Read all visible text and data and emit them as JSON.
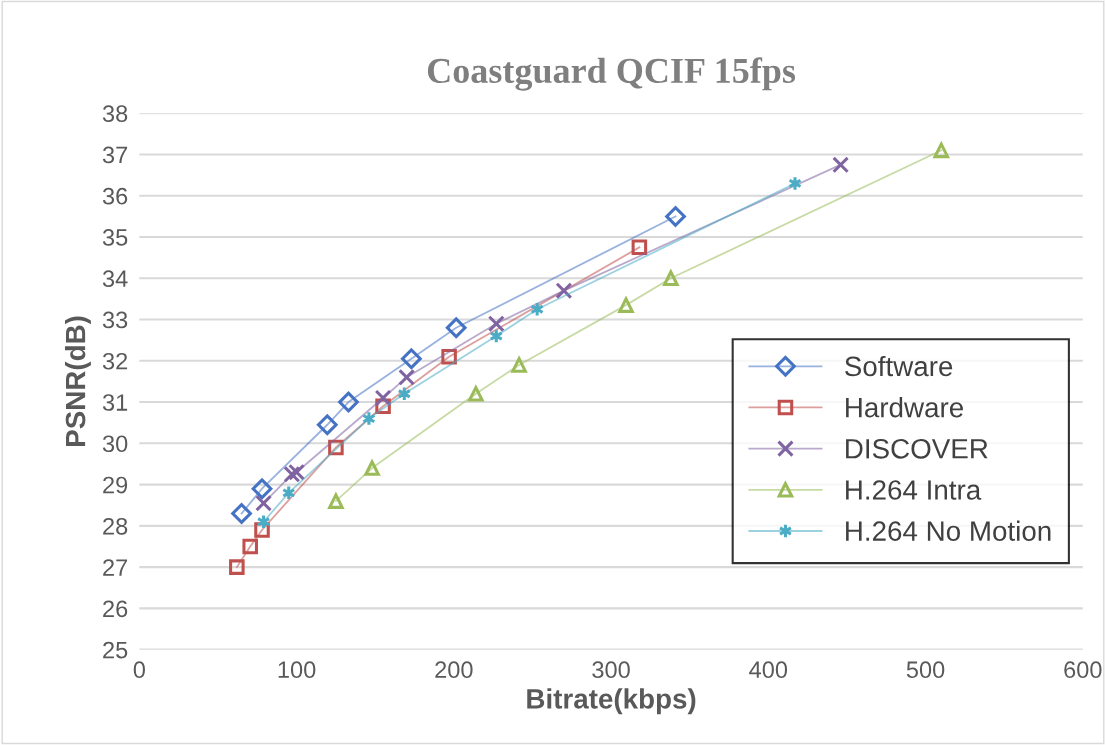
{
  "chart_data": {
    "type": "line",
    "title": "Coastguard QCIF 15fps",
    "xlabel": "Bitrate(kbps)",
    "ylabel": "PSNR(dB)",
    "xlim": [
      0,
      600
    ],
    "xticks": [
      0,
      100,
      200,
      300,
      400,
      500,
      600
    ],
    "ylim": [
      25,
      38
    ],
    "yticks": [
      25,
      26,
      27,
      28,
      29,
      30,
      31,
      32,
      33,
      34,
      35,
      36,
      37,
      38
    ],
    "grid": "y",
    "legend": "right",
    "series": [
      {
        "name": "Software",
        "color": "#4472c4",
        "marker": "diamond",
        "x": [
          65,
          78,
          119.5,
          133,
          173,
          201.5,
          341
        ],
        "values": [
          28.3,
          28.9,
          30.45,
          31.0,
          32.05,
          32.8,
          35.5
        ]
      },
      {
        "name": "Hardware",
        "color": "#c0504d",
        "marker": "square",
        "x": [
          62,
          70.5,
          78,
          125,
          155,
          197,
          318
        ],
        "values": [
          27.0,
          27.5,
          27.9,
          29.9,
          30.9,
          32.1,
          34.75
        ]
      },
      {
        "name": "DISCOVER",
        "color": "#8064a2",
        "marker": "cross",
        "x": [
          79,
          97,
          100,
          155,
          170,
          227,
          270,
          446
        ],
        "values": [
          28.55,
          29.25,
          29.3,
          31.1,
          31.6,
          32.9,
          33.7,
          36.75
        ]
      },
      {
        "name": "H.264 Intra",
        "color": "#9bbb59",
        "marker": "triangle",
        "x": [
          125,
          148,
          214,
          241.5,
          309.5,
          338,
          510
        ],
        "values": [
          28.6,
          29.4,
          31.2,
          31.9,
          33.35,
          34.0,
          37.1
        ]
      },
      {
        "name": "H.264 No Motion",
        "color": "#4bacc6",
        "marker": "cross",
        "x": [
          79,
          95,
          146,
          168.5,
          227,
          253,
          417
        ],
        "values": [
          28.1,
          28.8,
          30.6,
          31.2,
          32.6,
          33.25,
          36.3
        ]
      }
    ]
  }
}
